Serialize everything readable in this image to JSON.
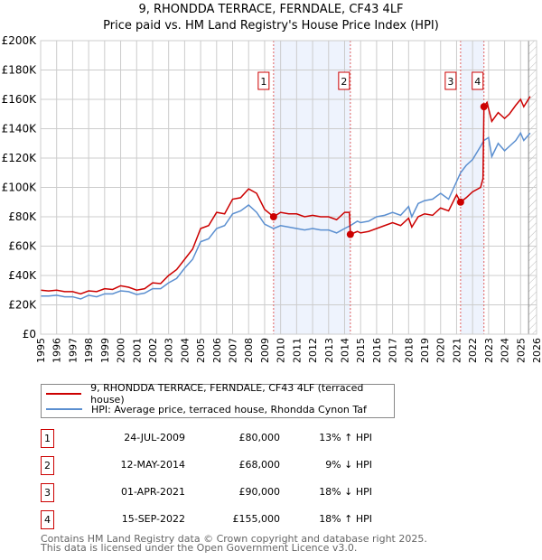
{
  "chart_data": {
    "type": "line",
    "title": "9, RHONDDA TERRACE, FERNDALE, CF43 4LF",
    "subtitle": "Price paid vs. HM Land Registry's House Price Index (HPI)",
    "xlim": [
      1995,
      2026
    ],
    "ylim": [
      0,
      200000
    ],
    "y_ticks": [
      {
        "v": 0,
        "label": "£0"
      },
      {
        "v": 20000,
        "label": "£20K"
      },
      {
        "v": 40000,
        "label": "£40K"
      },
      {
        "v": 60000,
        "label": "£60K"
      },
      {
        "v": 80000,
        "label": "£80K"
      },
      {
        "v": 100000,
        "label": "£100K"
      },
      {
        "v": 120000,
        "label": "£120K"
      },
      {
        "v": 140000,
        "label": "£140K"
      },
      {
        "v": 160000,
        "label": "£160K"
      },
      {
        "v": 180000,
        "label": "£180K"
      },
      {
        "v": 200000,
        "label": "£200K"
      }
    ],
    "x_ticks": [
      "1995",
      "1996",
      "1997",
      "1998",
      "1999",
      "2000",
      "2001",
      "2002",
      "2003",
      "2004",
      "2005",
      "2006",
      "2007",
      "2008",
      "2009",
      "2010",
      "2011",
      "2012",
      "2013",
      "2014",
      "2015",
      "2016",
      "2017",
      "2018",
      "2019",
      "2020",
      "2021",
      "2022",
      "2023",
      "2024",
      "2025",
      "2026"
    ],
    "grid": true,
    "series": [
      {
        "name": "9, RHONDDA TERRACE, FERNDALE, CF43 4LF (terraced house)",
        "color": "#cc0000",
        "x": [
          1995,
          1995.5,
          1996,
          1996.5,
          1997,
          1997.5,
          1998,
          1998.5,
          1999,
          1999.5,
          2000,
          2000.5,
          2001,
          2001.5,
          2002,
          2002.5,
          2003,
          2003.5,
          2004,
          2004.5,
          2005,
          2005.5,
          2006,
          2006.5,
          2007,
          2007.5,
          2008,
          2008.5,
          2009,
          2009.56,
          2010,
          2010.5,
          2011,
          2011.5,
          2012,
          2012.5,
          2013,
          2013.5,
          2014,
          2014.3,
          2014.36,
          2014.8,
          2015,
          2015.5,
          2016,
          2016.5,
          2017,
          2017.5,
          2018,
          2018.2,
          2018.6,
          2019,
          2019.5,
          2020,
          2020.5,
          2021,
          2021.25,
          2021.6,
          2022,
          2022.5,
          2022.65,
          2022.71,
          2022.9,
          2023.2,
          2023.6,
          2024,
          2024.3,
          2024.7,
          2025,
          2025.2,
          2025.6
        ],
        "y": [
          30000,
          29500,
          30000,
          29000,
          29000,
          27500,
          29500,
          29000,
          31000,
          30500,
          33000,
          32000,
          30000,
          31000,
          35000,
          34500,
          40000,
          44000,
          51000,
          58000,
          72000,
          74000,
          83000,
          82000,
          92000,
          93000,
          99000,
          96000,
          85000,
          80000,
          83000,
          82000,
          82000,
          80000,
          81000,
          80000,
          80000,
          78000,
          83000,
          83000,
          68000,
          70000,
          69000,
          70000,
          72000,
          74000,
          76000,
          74000,
          79000,
          73000,
          80000,
          82000,
          81000,
          86000,
          84000,
          95000,
          90000,
          93000,
          97000,
          100000,
          106000,
          155000,
          158000,
          145000,
          151000,
          147000,
          150000,
          156000,
          160000,
          155000,
          162000
        ]
      },
      {
        "name": "HPI: Average price, terraced house, Rhondda Cynon Taf",
        "color": "#5b8fd0",
        "x": [
          1995,
          1995.5,
          1996,
          1996.5,
          1997,
          1997.5,
          1998,
          1998.5,
          1999,
          1999.5,
          2000,
          2000.5,
          2001,
          2001.5,
          2002,
          2002.5,
          2003,
          2003.5,
          2004,
          2004.5,
          2005,
          2005.5,
          2006,
          2006.5,
          2007,
          2007.5,
          2008,
          2008.5,
          2009,
          2009.56,
          2010,
          2010.5,
          2011,
          2011.5,
          2012,
          2012.5,
          2013,
          2013.5,
          2014,
          2014.36,
          2014.8,
          2015,
          2015.5,
          2016,
          2016.5,
          2017,
          2017.5,
          2018,
          2018.2,
          2018.6,
          2019,
          2019.5,
          2020,
          2020.5,
          2021,
          2021.25,
          2021.6,
          2022,
          2022.5,
          2022.71,
          2023,
          2023.2,
          2023.6,
          2024,
          2024.3,
          2024.7,
          2025,
          2025.2,
          2025.6
        ],
        "y": [
          26000,
          26000,
          26500,
          25500,
          25500,
          24000,
          26500,
          25500,
          27500,
          27500,
          29500,
          29000,
          27000,
          28000,
          31000,
          31000,
          35000,
          38000,
          45000,
          51000,
          63000,
          65000,
          72000,
          74000,
          82000,
          84000,
          88000,
          83000,
          75000,
          72000,
          74000,
          73000,
          72000,
          71000,
          72000,
          71000,
          71000,
          69000,
          72000,
          74000,
          77000,
          76000,
          77000,
          80000,
          81000,
          83000,
          81000,
          87000,
          80000,
          89000,
          91000,
          92000,
          96000,
          92000,
          104000,
          110000,
          115000,
          119000,
          128000,
          132000,
          134000,
          121000,
          130000,
          125000,
          128000,
          132000,
          137000,
          132000,
          137000
        ]
      }
    ],
    "sales": [
      {
        "n": "1",
        "x": 2009.56,
        "y": 80000
      },
      {
        "n": "2",
        "x": 2014.36,
        "y": 68000
      },
      {
        "n": "3",
        "x": 2021.25,
        "y": 90000
      },
      {
        "n": "4",
        "x": 2022.71,
        "y": 155000
      }
    ],
    "shaded": [
      [
        2009.56,
        2014.36
      ],
      [
        2021.25,
        2022.71
      ]
    ],
    "forecast_from": 2025.5
  },
  "legend": {
    "property": "9, RHONDDA TERRACE, FERNDALE, CF43 4LF (terraced house)",
    "hpi": "HPI: Average price, terraced house, Rhondda Cynon Taf"
  },
  "table": [
    {
      "n": "1",
      "date": "24-JUL-2009",
      "price": "£80,000",
      "hpi": "13% ↑ HPI"
    },
    {
      "n": "2",
      "date": "12-MAY-2014",
      "price": "£68,000",
      "hpi": "9% ↓ HPI"
    },
    {
      "n": "3",
      "date": "01-APR-2021",
      "price": "£90,000",
      "hpi": "18% ↓ HPI"
    },
    {
      "n": "4",
      "date": "15-SEP-2022",
      "price": "£155,000",
      "hpi": "18% ↑ HPI"
    }
  ],
  "footer": {
    "line1": "Contains HM Land Registry data © Crown copyright and database right 2025.",
    "line2": "This data is licensed under the Open Government Licence v3.0."
  }
}
